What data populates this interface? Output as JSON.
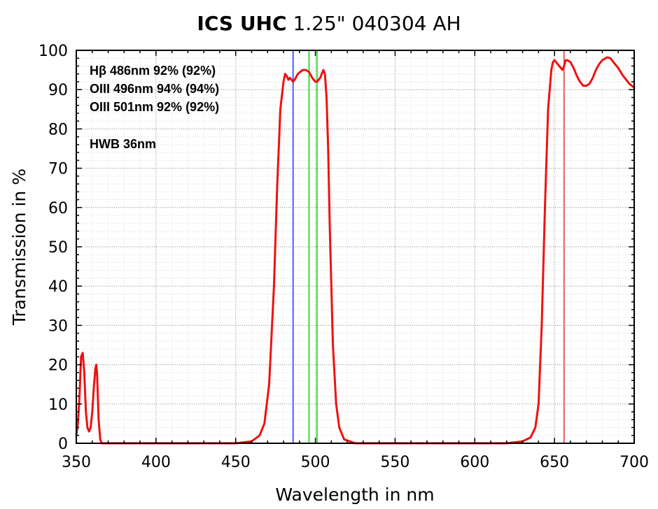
{
  "chart_data": {
    "type": "line",
    "title_bold": "ICS UHC",
    "title_rest": " 1.25\" 040304 AH",
    "xlabel": "Wavelength in nm",
    "ylabel": "Transmission in %",
    "xlim": [
      350,
      700
    ],
    "ylim": [
      0,
      100
    ],
    "x_ticks": [
      "350",
      "400",
      "450",
      "500",
      "550",
      "600",
      "650",
      "700"
    ],
    "y_ticks": [
      "0",
      "10",
      "20",
      "30",
      "40",
      "50",
      "60",
      "70",
      "80",
      "90",
      "100"
    ],
    "grid": true,
    "annotations": [
      "Hβ   486nm  92%  (92%)",
      "OIII  496nm  94%  (94%)",
      "OIII  501nm  92%  (92%)",
      "HWB  36nm"
    ],
    "reference_lines": [
      {
        "x": 486,
        "color": "#3a4dff"
      },
      {
        "x": 496,
        "color": "#22dd22"
      },
      {
        "x": 501,
        "color": "#22dd22"
      },
      {
        "x": 656,
        "color": "#e05050"
      }
    ],
    "series": [
      {
        "color": "#ee1111",
        "points": [
          [
            350,
            2
          ],
          [
            351,
            5
          ],
          [
            352,
            12
          ],
          [
            353,
            22
          ],
          [
            354,
            23
          ],
          [
            355,
            18
          ],
          [
            356,
            8
          ],
          [
            357,
            4
          ],
          [
            358,
            3
          ],
          [
            359,
            4
          ],
          [
            360,
            8
          ],
          [
            361,
            14
          ],
          [
            362,
            19
          ],
          [
            362.5,
            20
          ],
          [
            363,
            18
          ],
          [
            364,
            6
          ],
          [
            365,
            1
          ],
          [
            366,
            0
          ],
          [
            370,
            0
          ],
          [
            400,
            0
          ],
          [
            450,
            0
          ],
          [
            460,
            0.5
          ],
          [
            465,
            2
          ],
          [
            468,
            5
          ],
          [
            471,
            15
          ],
          [
            474,
            40
          ],
          [
            476,
            65
          ],
          [
            478,
            85
          ],
          [
            480,
            92
          ],
          [
            481,
            94
          ],
          [
            482,
            93.5
          ],
          [
            483,
            92.5
          ],
          [
            484,
            93
          ],
          [
            485,
            92.5
          ],
          [
            486,
            92
          ],
          [
            487,
            92.5
          ],
          [
            489,
            94
          ],
          [
            492,
            95
          ],
          [
            494,
            95
          ],
          [
            496,
            94.5
          ],
          [
            498,
            93
          ],
          [
            500,
            92
          ],
          [
            501,
            92
          ],
          [
            503,
            93
          ],
          [
            505,
            95
          ],
          [
            506,
            94
          ],
          [
            507,
            88
          ],
          [
            508,
            75
          ],
          [
            509,
            55
          ],
          [
            511,
            25
          ],
          [
            513,
            10
          ],
          [
            515,
            4
          ],
          [
            518,
            1
          ],
          [
            525,
            0
          ],
          [
            550,
            0
          ],
          [
            600,
            0
          ],
          [
            620,
            0
          ],
          [
            630,
            0.5
          ],
          [
            635,
            1.5
          ],
          [
            638,
            4
          ],
          [
            640,
            10
          ],
          [
            642,
            30
          ],
          [
            644,
            60
          ],
          [
            646,
            85
          ],
          [
            648,
            95
          ],
          [
            649,
            97
          ],
          [
            650,
            97.5
          ],
          [
            651,
            97
          ],
          [
            652,
            96.5
          ],
          [
            654,
            95.5
          ],
          [
            655,
            95
          ],
          [
            656,
            96
          ],
          [
            657,
            97.5
          ],
          [
            658,
            97.5
          ],
          [
            660,
            97
          ],
          [
            662,
            95.5
          ],
          [
            664,
            93.5
          ],
          [
            666,
            92
          ],
          [
            668,
            91
          ],
          [
            670,
            91
          ],
          [
            672,
            91.5
          ],
          [
            674,
            93
          ],
          [
            676,
            95
          ],
          [
            678,
            96.5
          ],
          [
            680,
            97.5
          ],
          [
            683,
            98.2
          ],
          [
            685,
            98
          ],
          [
            687,
            97
          ],
          [
            690,
            95.5
          ],
          [
            693,
            93.5
          ],
          [
            697,
            91.5
          ],
          [
            700,
            90.5
          ]
        ]
      }
    ]
  }
}
